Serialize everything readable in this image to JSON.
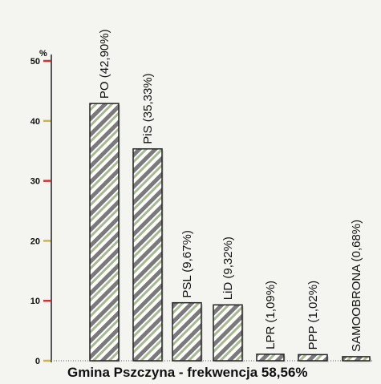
{
  "chart_data": {
    "type": "bar",
    "categories": [
      "PO",
      "PiS",
      "PSL",
      "LiD",
      "LPR",
      "PPP",
      "SAMOOBRONA"
    ],
    "values": [
      42.9,
      35.33,
      9.67,
      9.32,
      1.09,
      1.02,
      0.68
    ],
    "bar_labels": [
      "PO (42,90%)",
      "PiS (35,33%)",
      "PSL (9,67%)",
      "LiD (9,32%)",
      "LPR (1,09%)",
      "PPP (1,02%)",
      "SAMOOBRONA (0,68%)"
    ],
    "ytick_labels": [
      "0",
      "10",
      "20",
      "30",
      "40",
      "50"
    ],
    "ylim": [
      0,
      50
    ],
    "y_unit": "%",
    "caption": "Gmina Pszczyna - frekwencja 58,56%",
    "colors": {
      "background": "#f4f4f0",
      "axis": "#555555",
      "tick_red": "#c83636",
      "tick_yellow": "#c9b54c",
      "bar_edge": "#222222",
      "bar_stripe_1": "#7a7a7a",
      "bar_stripe_2": "#ffffff",
      "bar_stripe_3": "#a9b792"
    }
  }
}
